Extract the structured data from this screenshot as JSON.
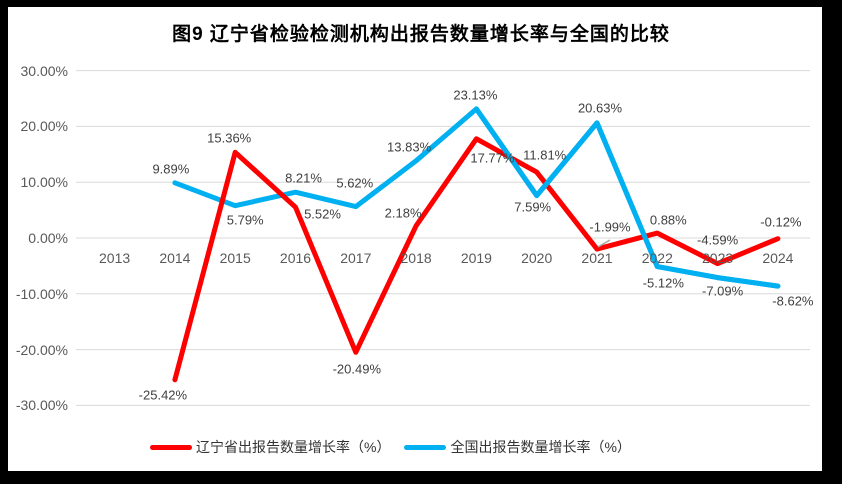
{
  "title": "图9  辽宁省检验检测机构出报告数量增长率与全国的比较",
  "colors": {
    "series1": "#ff0000",
    "series2": "#00b0f0",
    "gridline": "#d9d9d9",
    "axis_text": "#595959",
    "data_label_text": "#3f3f3f",
    "leader_line": "#a6a6a6",
    "frame": "#000000",
    "background": "#ffffff"
  },
  "chart_data": {
    "type": "line",
    "title": "图9  辽宁省检验检测机构出报告数量增长率与全国的比较",
    "categories": [
      "2013",
      "2014",
      "2015",
      "2016",
      "2017",
      "2018",
      "2019",
      "2020",
      "2021",
      "2022",
      "2023",
      "2024"
    ],
    "y_axis": {
      "min": -30,
      "max": 30,
      "tick_step": 10,
      "tick_values": [
        30,
        20,
        10,
        0,
        -10,
        -20,
        -30
      ],
      "tick_labels": [
        "30.00%",
        "20.00%",
        "10.00%",
        "0.00%",
        "-10.00%",
        "-20.00%",
        "-30.00%"
      ],
      "format": "percent"
    },
    "grid": true,
    "legend_position": "bottom",
    "series": [
      {
        "name": "辽宁省出报告数量增长率（%）",
        "color": "#ff0000",
        "values": [
          null,
          -25.42,
          15.36,
          5.52,
          -20.49,
          2.18,
          17.77,
          11.81,
          -1.99,
          0.88,
          -4.59,
          -0.12
        ],
        "labels": [
          null,
          "-25.42%",
          "15.36%",
          "5.52%",
          "-20.49%",
          "2.18%",
          "17.77%",
          "11.81%",
          "-1.99%",
          "0.88%",
          "-4.59%",
          "-0.12%"
        ],
        "label_offsets": [
          null,
          [
            -12,
            15
          ],
          [
            -6,
            -14
          ],
          [
            27,
            7
          ],
          [
            1,
            17
          ],
          [
            -13,
            -13
          ],
          [
            16,
            19
          ],
          [
            8,
            -17
          ],
          [
            13,
            -22
          ],
          [
            11,
            -13
          ],
          [
            0,
            -24
          ],
          [
            3,
            -17
          ]
        ]
      },
      {
        "name": "全国出报告数量增长率（%）",
        "color": "#00b0f0",
        "values": [
          null,
          9.89,
          5.79,
          8.21,
          5.62,
          13.83,
          23.13,
          7.59,
          20.63,
          -5.12,
          -7.09,
          -8.62
        ],
        "labels": [
          null,
          "9.89%",
          "5.79%",
          "8.21%",
          "5.62%",
          "13.83%",
          "23.13%",
          "7.59%",
          "20.63%",
          "-5.12%",
          "-7.09%",
          "-8.62%"
        ],
        "label_offsets": [
          null,
          [
            -4,
            -14
          ],
          [
            10,
            14
          ],
          [
            8,
            -14
          ],
          [
            -1,
            -24
          ],
          [
            -7,
            -14
          ],
          [
            -1,
            -14
          ],
          [
            -4,
            11
          ],
          [
            3,
            -15
          ],
          [
            6,
            16
          ],
          [
            5,
            13
          ],
          [
            15,
            15
          ]
        ]
      }
    ]
  }
}
